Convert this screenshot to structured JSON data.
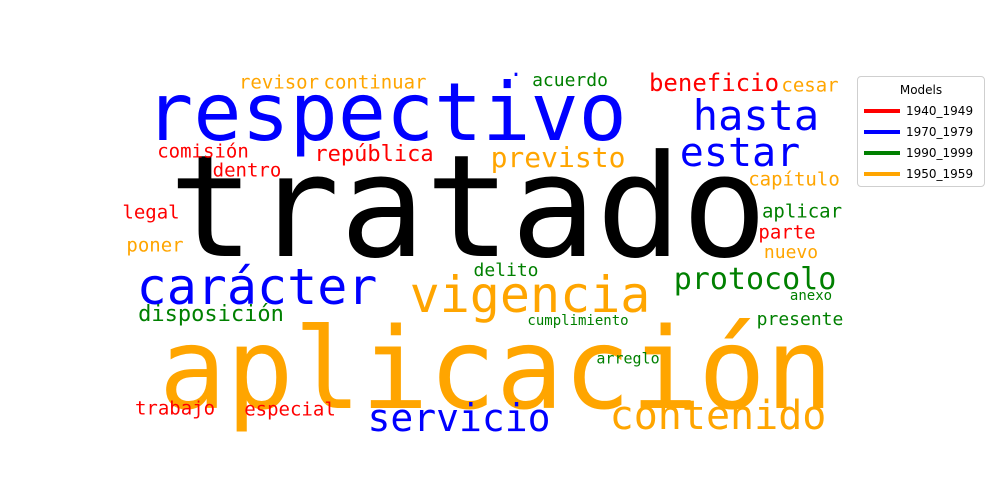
{
  "chart_data": {
    "type": "wordcloud",
    "title": "",
    "legend": {
      "title": "Models",
      "placement": "right",
      "entries": [
        {
          "label": "1940_1949",
          "color": "#ff0000"
        },
        {
          "label": "1970_1979",
          "color": "#0000ff"
        },
        {
          "label": "1990_1999",
          "color": "#008000"
        },
        {
          "label": "1950_1959",
          "color": "#ffa500"
        }
      ]
    },
    "words": [
      {
        "text": "tratado",
        "model": "black",
        "color": "#000000",
        "weight": 1.0
      },
      {
        "text": "aplicación",
        "model": "1950_1959",
        "color": "#ffa500",
        "weight": 0.78
      },
      {
        "text": "respectivo",
        "model": "1970_1979",
        "color": "#0000ff",
        "weight": 0.62
      },
      {
        "text": "vigencia",
        "model": "1950_1959",
        "color": "#ffa500",
        "weight": 0.4
      },
      {
        "text": "carácter",
        "model": "1970_1979",
        "color": "#0000ff",
        "weight": 0.38
      },
      {
        "text": "contenido",
        "model": "1950_1959",
        "color": "#ffa500",
        "weight": 0.33
      },
      {
        "text": "servicio",
        "model": "1970_1979",
        "color": "#0000ff",
        "weight": 0.31
      },
      {
        "text": "hasta",
        "model": "1970_1979",
        "color": "#0000ff",
        "weight": 0.3
      },
      {
        "text": "estar",
        "model": "1970_1979",
        "color": "#0000ff",
        "weight": 0.3
      },
      {
        "text": "protocolo",
        "model": "1990_1999",
        "color": "#008000",
        "weight": 0.24
      },
      {
        "text": "previsto",
        "model": "1950_1959",
        "color": "#ffa500",
        "weight": 0.22
      },
      {
        "text": "beneficio",
        "model": "1940_1949",
        "color": "#ff0000",
        "weight": 0.18
      },
      {
        "text": "república",
        "model": "1940_1949",
        "color": "#ff0000",
        "weight": 0.16
      },
      {
        "text": "disposición",
        "model": "1990_1999",
        "color": "#008000",
        "weight": 0.16
      },
      {
        "text": "revisor",
        "model": "1950_1959",
        "color": "#ffa500",
        "weight": 0.14
      },
      {
        "text": "continuar",
        "model": "1950_1959",
        "color": "#ffa500",
        "weight": 0.14
      },
      {
        "text": "acuerdo",
        "model": "1990_1999",
        "color": "#008000",
        "weight": 0.14
      },
      {
        "text": "cesar",
        "model": "1950_1959",
        "color": "#ffa500",
        "weight": 0.14
      },
      {
        "text": "comisión",
        "model": "1940_1949",
        "color": "#ff0000",
        "weight": 0.14
      },
      {
        "text": "dentro",
        "model": "1940_1949",
        "color": "#ff0000",
        "weight": 0.14
      },
      {
        "text": "capítulo",
        "model": "1950_1959",
        "color": "#ffa500",
        "weight": 0.14
      },
      {
        "text": "legal",
        "model": "1940_1949",
        "color": "#ff0000",
        "weight": 0.14
      },
      {
        "text": "aplicar",
        "model": "1990_1999",
        "color": "#008000",
        "weight": 0.14
      },
      {
        "text": "poner",
        "model": "1950_1959",
        "color": "#ffa500",
        "weight": 0.14
      },
      {
        "text": "parte",
        "model": "1940_1949",
        "color": "#ff0000",
        "weight": 0.14
      },
      {
        "text": "nuevo",
        "model": "1950_1959",
        "color": "#ffa500",
        "weight": 0.13
      },
      {
        "text": "delito",
        "model": "1990_1999",
        "color": "#008000",
        "weight": 0.13
      },
      {
        "text": "presente",
        "model": "1990_1999",
        "color": "#008000",
        "weight": 0.13
      },
      {
        "text": "trabajo",
        "model": "1940_1949",
        "color": "#ff0000",
        "weight": 0.14
      },
      {
        "text": "especial",
        "model": "1940_1949",
        "color": "#ff0000",
        "weight": 0.14
      },
      {
        "text": "arreglo",
        "model": "1990_1999",
        "color": "#008000",
        "weight": 0.11
      },
      {
        "text": "cumplimiento",
        "model": "1990_1999",
        "color": "#008000",
        "weight": 0.1
      },
      {
        "text": "anexo",
        "model": "1990_1999",
        "color": "#008000",
        "weight": 0.1
      },
      {
        "text": "·",
        "model": "1970_1979",
        "color": "#0000ff",
        "weight": 0.08
      }
    ]
  }
}
